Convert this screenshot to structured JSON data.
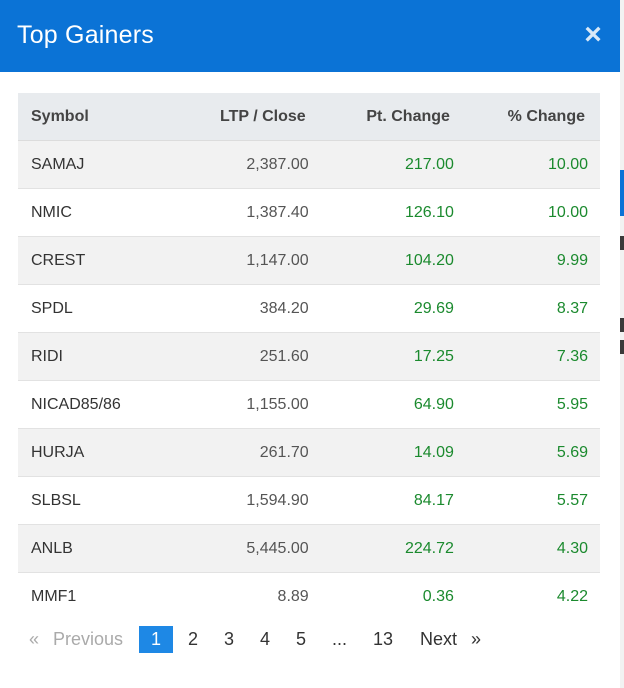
{
  "modal": {
    "title": "Top Gainers",
    "close_icon": "close-icon",
    "accent_color": "#0b73d6",
    "gain_color": "#1b8a2e"
  },
  "table": {
    "columns": [
      "Symbol",
      "LTP / Close",
      "Pt. Change",
      "% Change"
    ],
    "rows": [
      {
        "symbol": "SAMAJ",
        "ltp": "2,387.00",
        "pt": "217.00",
        "pct": "10.00"
      },
      {
        "symbol": "NMIC",
        "ltp": "1,387.40",
        "pt": "126.10",
        "pct": "10.00"
      },
      {
        "symbol": "CREST",
        "ltp": "1,147.00",
        "pt": "104.20",
        "pct": "9.99"
      },
      {
        "symbol": "SPDL",
        "ltp": "384.20",
        "pt": "29.69",
        "pct": "8.37"
      },
      {
        "symbol": "RIDI",
        "ltp": "251.60",
        "pt": "17.25",
        "pct": "7.36"
      },
      {
        "symbol": "NICAD85/86",
        "ltp": "1,155.00",
        "pt": "64.90",
        "pct": "5.95"
      },
      {
        "symbol": "HURJA",
        "ltp": "261.70",
        "pt": "14.09",
        "pct": "5.69"
      },
      {
        "symbol": "SLBSL",
        "ltp": "1,594.90",
        "pt": "84.17",
        "pct": "5.57"
      },
      {
        "symbol": "ANLB",
        "ltp": "5,445.00",
        "pt": "224.72",
        "pct": "4.30"
      },
      {
        "symbol": "MMF1",
        "ltp": "8.89",
        "pt": "0.36",
        "pct": "4.22"
      }
    ]
  },
  "pagination": {
    "prev_arrow": "«",
    "prev_label": "Previous",
    "pages": [
      "1",
      "2",
      "3",
      "4",
      "5"
    ],
    "ellipsis": "...",
    "last_page": "13",
    "next_label": "Next",
    "next_arrow": "»",
    "current_page": "1"
  }
}
